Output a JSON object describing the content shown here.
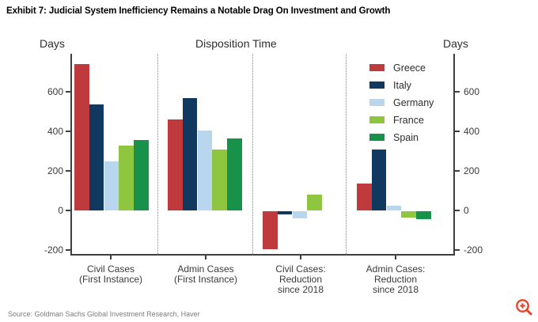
{
  "title": "Exhibit 7: Judicial System Inefficiency Remains a Notable Drag On Investment and Growth",
  "source": "Source: Goldman Sachs Global Investment Research, Haver",
  "zoom_icon": {
    "name": "zoom-in-magnifier-plus",
    "color": "#e8462b"
  },
  "chart_data": {
    "type": "bar",
    "title": "Disposition Time",
    "ylabel_left": "Days",
    "ylabel_right": "Days",
    "unit": "Days",
    "ylim": [
      -224,
      792
    ],
    "yticks": [
      600,
      400,
      200,
      0,
      -200
    ],
    "grid": false,
    "legend_position": "upper-right-inside",
    "group_separators": "dotted-vertical",
    "categories": [
      [
        "Civil Cases",
        "(First Instance)"
      ],
      [
        "Admin Cases",
        "(First Instance)"
      ],
      [
        "Civil Cases:",
        "Reduction",
        "since 2018"
      ],
      [
        "Admin Cases:",
        "Reduction",
        "since 2018"
      ]
    ],
    "series": [
      {
        "name": "Greece",
        "color": "#bf3a3c",
        "values": [
          740,
          460,
          -190,
          135
        ]
      },
      {
        "name": "Italy",
        "color": "#11395f",
        "values": [
          535,
          570,
          -15,
          310
        ]
      },
      {
        "name": "Germany",
        "color": "#b8d7ee",
        "values": [
          250,
          405,
          -35,
          25
        ]
      },
      {
        "name": "France",
        "color": "#8ec640",
        "values": [
          330,
          310,
          80,
          -30
        ]
      },
      {
        "name": "Spain",
        "color": "#18914b",
        "values": [
          355,
          365,
          0,
          -40
        ]
      }
    ]
  }
}
